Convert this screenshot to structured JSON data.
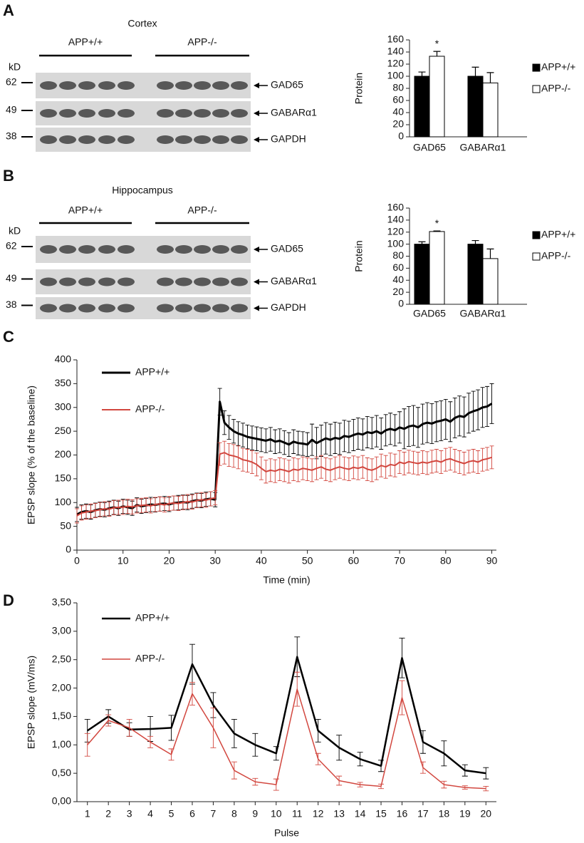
{
  "panel_labels": [
    "A",
    "B",
    "C",
    "D"
  ],
  "blots": [
    {
      "title": "Cortex",
      "groups": [
        "APP+/+",
        "APP-/-"
      ],
      "unit": "kD",
      "rows": [
        {
          "mw": "62",
          "protein": "GAD65"
        },
        {
          "mw": "49",
          "protein": "GABARα1"
        },
        {
          "mw": "38",
          "protein": "GAPDH"
        }
      ]
    },
    {
      "title": "Hippocampus",
      "groups": [
        "APP+/+",
        "APP-/-"
      ],
      "unit": "kD",
      "rows": [
        {
          "mw": "62",
          "protein": "GAD65"
        },
        {
          "mw": "49",
          "protein": "GABARα1"
        },
        {
          "mw": "38",
          "protein": "GAPDH"
        }
      ]
    }
  ],
  "chart_data": [
    {
      "type": "bar",
      "ylabel": "Protein",
      "categories": [
        "GAD65",
        "GABARα1"
      ],
      "series": [
        {
          "name": "APP+/+",
          "color": "#000000",
          "values": [
            100,
            100
          ],
          "errors": [
            7,
            15
          ]
        },
        {
          "name": "APP-/-",
          "color": "#ffffff",
          "values": [
            133,
            89
          ],
          "errors": [
            8,
            17
          ]
        }
      ],
      "ylim": [
        0,
        160
      ],
      "yticks": [
        0,
        20,
        40,
        60,
        80,
        100,
        120,
        140,
        160
      ],
      "legend": "right",
      "annotations": [
        {
          "text": "*",
          "category": "GAD65",
          "series": "APP-/-"
        }
      ]
    },
    {
      "type": "bar",
      "ylabel": "Protein",
      "categories": [
        "GAD65",
        "GABARα1"
      ],
      "series": [
        {
          "name": "APP+/+",
          "color": "#000000",
          "values": [
            100,
            100
          ],
          "errors": [
            4,
            6
          ]
        },
        {
          "name": "APP-/-",
          "color": "#ffffff",
          "values": [
            121,
            76
          ],
          "errors": [
            1,
            16
          ]
        }
      ],
      "ylim": [
        0,
        160
      ],
      "yticks": [
        0,
        20,
        40,
        60,
        80,
        100,
        120,
        140,
        160
      ],
      "legend": "right",
      "annotations": [
        {
          "text": "*",
          "category": "GAD65",
          "series": "APP-/-"
        }
      ]
    },
    {
      "type": "line",
      "xlabel": "Time (min)",
      "ylabel": "EPSP slope (% of the baseline)",
      "legend": "upper left",
      "x": [
        0,
        1,
        2,
        3,
        4,
        5,
        6,
        7,
        8,
        9,
        10,
        11,
        12,
        13,
        14,
        15,
        16,
        17,
        18,
        19,
        20,
        21,
        22,
        23,
        24,
        25,
        26,
        27,
        28,
        29,
        30,
        31,
        32,
        33,
        34,
        35,
        36,
        37,
        38,
        39,
        40,
        41,
        42,
        43,
        44,
        45,
        46,
        47,
        48,
        49,
        50,
        51,
        52,
        53,
        54,
        55,
        56,
        57,
        58,
        59,
        60,
        61,
        62,
        63,
        64,
        65,
        66,
        67,
        68,
        69,
        70,
        71,
        72,
        73,
        74,
        75,
        76,
        77,
        78,
        79,
        80,
        81,
        82,
        83,
        84,
        85,
        86,
        87,
        88,
        89,
        90
      ],
      "series": [
        {
          "name": "APP+/+",
          "color": "#000000",
          "values": [
            75,
            80,
            82,
            80,
            84,
            86,
            85,
            88,
            90,
            88,
            92,
            90,
            88,
            95,
            92,
            94,
            96,
            95,
            97,
            98,
            96,
            99,
            100,
            101,
            100,
            103,
            105,
            104,
            107,
            108,
            106,
            312,
            268,
            258,
            250,
            245,
            242,
            238,
            236,
            234,
            232,
            230,
            233,
            228,
            230,
            226,
            222,
            228,
            225,
            224,
            222,
            232,
            225,
            230,
            235,
            232,
            236,
            234,
            240,
            238,
            242,
            245,
            243,
            248,
            246,
            250,
            245,
            252,
            255,
            252,
            258,
            255,
            260,
            262,
            258,
            265,
            268,
            266,
            270,
            272,
            275,
            270,
            278,
            282,
            280,
            288,
            292,
            295,
            300,
            302,
            308
          ],
          "errors": [
            15,
            15,
            15,
            15,
            15,
            15,
            15,
            15,
            15,
            15,
            15,
            15,
            15,
            15,
            15,
            15,
            15,
            15,
            15,
            15,
            15,
            15,
            15,
            15,
            15,
            15,
            15,
            15,
            15,
            15,
            15,
            28,
            25,
            25,
            25,
            25,
            25,
            25,
            25,
            25,
            25,
            25,
            25,
            25,
            25,
            25,
            25,
            25,
            25,
            25,
            25,
            33,
            33,
            33,
            33,
            33,
            33,
            33,
            33,
            33,
            33,
            33,
            33,
            33,
            33,
            33,
            33,
            33,
            33,
            33,
            33,
            42,
            42,
            42,
            42,
            42,
            42,
            42,
            42,
            42,
            42,
            42,
            42,
            42,
            42,
            42,
            42,
            42,
            42,
            42,
            42
          ]
        },
        {
          "name": "APP-/-",
          "color": "#d2473f",
          "values": [
            72,
            78,
            80,
            82,
            83,
            85,
            87,
            86,
            89,
            90,
            90,
            92,
            91,
            93,
            94,
            95,
            93,
            96,
            97,
            95,
            98,
            99,
            98,
            100,
            102,
            101,
            104,
            106,
            105,
            108,
            110,
            202,
            205,
            200,
            198,
            195,
            190,
            188,
            185,
            180,
            172,
            165,
            168,
            166,
            170,
            168,
            165,
            170,
            168,
            172,
            170,
            168,
            172,
            175,
            170,
            168,
            172,
            175,
            172,
            170,
            174,
            172,
            175,
            170,
            168,
            172,
            178,
            175,
            180,
            178,
            185,
            182,
            186,
            184,
            182,
            185,
            183,
            186,
            188,
            185,
            190,
            192,
            188,
            185,
            182,
            186,
            188,
            185,
            190,
            192,
            195
          ],
          "errors": [
            15,
            15,
            15,
            15,
            15,
            15,
            15,
            15,
            15,
            15,
            15,
            15,
            15,
            15,
            15,
            15,
            15,
            15,
            15,
            15,
            15,
            15,
            15,
            15,
            15,
            15,
            15,
            15,
            15,
            15,
            15,
            24,
            24,
            24,
            24,
            24,
            24,
            24,
            24,
            24,
            24,
            24,
            24,
            24,
            24,
            24,
            24,
            24,
            24,
            24,
            24,
            24,
            24,
            24,
            24,
            24,
            24,
            24,
            24,
            24,
            24,
            24,
            24,
            24,
            24,
            24,
            24,
            24,
            24,
            24,
            24,
            24,
            24,
            24,
            24,
            24,
            24,
            24,
            24,
            24,
            24,
            24,
            24,
            24,
            24,
            24,
            24,
            24,
            24,
            24,
            24
          ]
        }
      ],
      "xlim": [
        0,
        91
      ],
      "xticks": [
        0,
        10,
        20,
        30,
        40,
        50,
        60,
        70,
        80,
        90
      ],
      "ylim": [
        0,
        400
      ],
      "yticks": [
        0,
        50,
        100,
        150,
        200,
        250,
        300,
        350,
        400
      ]
    },
    {
      "type": "line",
      "xlabel": "Pulse",
      "ylabel": "EPSP slope (mV/ms)",
      "legend": "upper left",
      "x": [
        1,
        2,
        3,
        4,
        5,
        6,
        7,
        8,
        9,
        10,
        11,
        12,
        13,
        14,
        15,
        16,
        17,
        18,
        19,
        20
      ],
      "series": [
        {
          "name": "APP+/+",
          "color": "#000000",
          "values": [
            1.25,
            1.5,
            1.27,
            1.28,
            1.3,
            2.42,
            1.7,
            1.2,
            1.0,
            0.85,
            2.55,
            1.25,
            0.95,
            0.75,
            0.63,
            2.53,
            1.05,
            0.85,
            0.55,
            0.5
          ],
          "errors": [
            0.2,
            0.12,
            0.12,
            0.22,
            0.22,
            0.35,
            0.22,
            0.25,
            0.2,
            0.12,
            0.35,
            0.2,
            0.22,
            0.12,
            0.1,
            0.35,
            0.2,
            0.22,
            0.1,
            0.1
          ]
        },
        {
          "name": "APP-/-",
          "color": "#d2473f",
          "values": [
            1.0,
            1.43,
            1.3,
            1.05,
            0.83,
            1.9,
            1.3,
            0.55,
            0.35,
            0.3,
            1.98,
            0.75,
            0.37,
            0.3,
            0.27,
            1.83,
            0.6,
            0.3,
            0.25,
            0.23
          ],
          "errors": [
            0.2,
            0.1,
            0.15,
            0.1,
            0.1,
            0.2,
            0.35,
            0.15,
            0.06,
            0.1,
            0.3,
            0.1,
            0.08,
            0.04,
            0.04,
            0.3,
            0.1,
            0.06,
            0.03,
            0.04
          ]
        }
      ],
      "xlim": [
        0.5,
        20.5
      ],
      "xticks": [
        1,
        2,
        3,
        4,
        5,
        6,
        7,
        8,
        9,
        10,
        11,
        12,
        13,
        14,
        15,
        16,
        17,
        18,
        19,
        20
      ],
      "ylim": [
        0,
        3.5
      ],
      "yticks": [
        {
          "value": 0,
          "label": "0,00"
        },
        {
          "value": 0.5,
          "label": "0,50"
        },
        {
          "value": 1,
          "label": "1,00"
        },
        {
          "value": 1.5,
          "label": "1,50"
        },
        {
          "value": 2,
          "label": "2,00"
        },
        {
          "value": 2.5,
          "label": "2,50"
        },
        {
          "value": 3,
          "label": "3,00"
        },
        {
          "value": 3.5,
          "label": "3,50"
        }
      ]
    }
  ]
}
